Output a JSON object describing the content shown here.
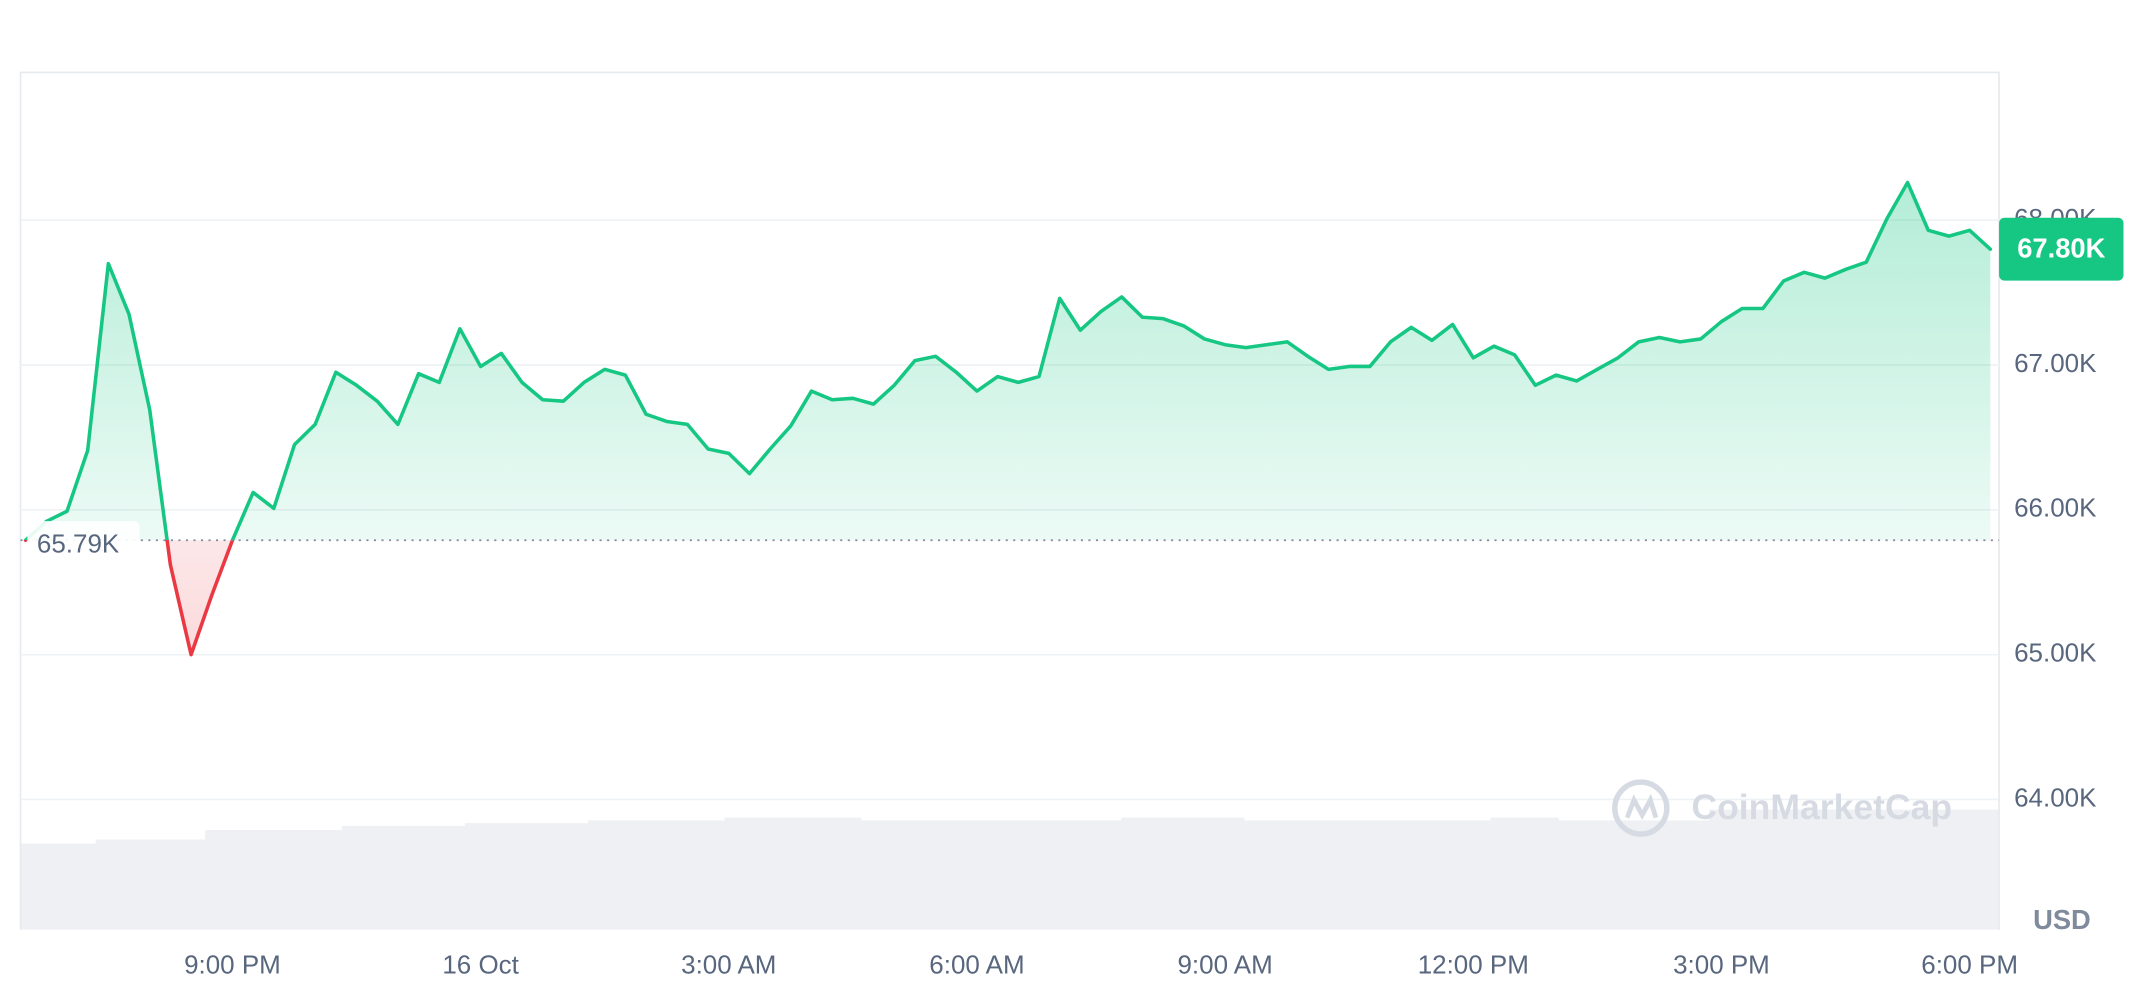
{
  "chart_data": {
    "type": "line",
    "categories": [
      null,
      null,
      null,
      null,
      null,
      null,
      null,
      null,
      null,
      null,
      "9:00 PM",
      null,
      null,
      null,
      null,
      null,
      null,
      null,
      null,
      null,
      null,
      null,
      "16 Oct",
      null,
      null,
      null,
      null,
      null,
      null,
      null,
      null,
      null,
      null,
      null,
      "3:00 AM",
      null,
      null,
      null,
      null,
      null,
      null,
      null,
      null,
      null,
      null,
      null,
      "6:00 AM",
      null,
      null,
      null,
      null,
      null,
      null,
      null,
      null,
      null,
      null,
      null,
      "9:00 AM",
      null,
      null,
      null,
      null,
      null,
      null,
      null,
      null,
      null,
      null,
      null,
      "12:00 PM",
      null,
      null,
      null,
      null,
      null,
      null,
      null,
      null,
      null,
      null,
      null,
      "3:00 PM",
      null,
      null,
      null,
      null,
      null,
      null,
      null,
      null,
      null,
      null,
      null,
      "6:00 PM",
      null
    ],
    "values": [
      65790,
      65920,
      65990,
      66410,
      67700,
      67350,
      66690,
      65620,
      65000,
      65410,
      65790,
      66120,
      66010,
      66450,
      66590,
      66950,
      66860,
      66750,
      66590,
      66940,
      66880,
      67250,
      66990,
      67080,
      66880,
      66760,
      66750,
      66880,
      66970,
      66930,
      66660,
      66610,
      66590,
      66420,
      66390,
      66250,
      66420,
      66580,
      66820,
      66760,
      66770,
      66730,
      66860,
      67030,
      67060,
      66950,
      66820,
      66920,
      66880,
      66920,
      67460,
      67240,
      67370,
      67470,
      67330,
      67320,
      67270,
      67180,
      67140,
      67120,
      67140,
      67160,
      67060,
      66970,
      66990,
      66990,
      67160,
      67260,
      67170,
      67280,
      67050,
      67130,
      67070,
      66860,
      66930,
      66890,
      66970,
      67050,
      67160,
      67190,
      67160,
      67180,
      67300,
      67390,
      67390,
      67580,
      67640,
      67600,
      67660,
      67710,
      68010,
      68260,
      67930,
      67890,
      67930,
      67800
    ],
    "color": "#16c784",
    "negative_color": "#ea3943",
    "baseline": {
      "value": 65790,
      "label": "65.79K"
    },
    "last_price": {
      "value": 67800,
      "label": "67.80K"
    },
    "ylim": [
      63100,
      69020
    ],
    "yticks": [
      {
        "value": 64000,
        "label": "64.00K"
      },
      {
        "value": 65000,
        "label": "65.00K"
      },
      {
        "value": 66000,
        "label": "66.00K"
      },
      {
        "value": 67000,
        "label": "67.00K"
      },
      {
        "value": 68000,
        "label": "68.00K"
      }
    ],
    "y_label": "USD",
    "watermark": "CoinMarketCap",
    "grid": true
  }
}
